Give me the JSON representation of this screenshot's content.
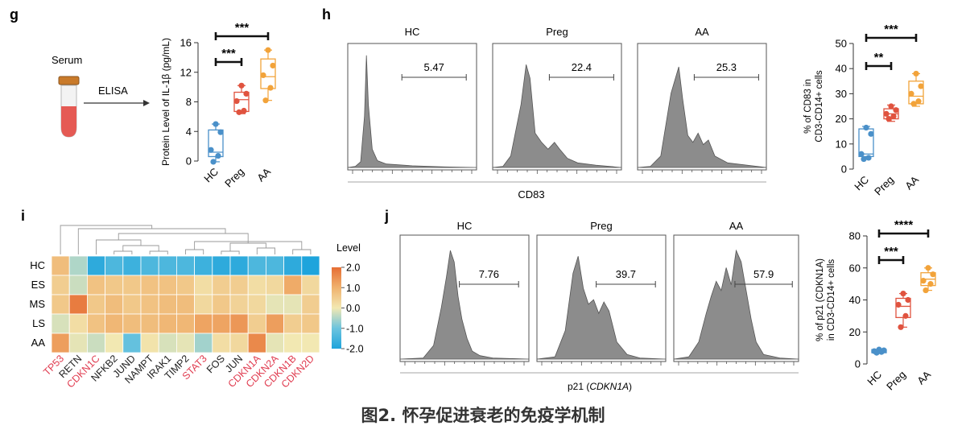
{
  "caption": "图2. 怀孕促进衰老的免疫学机制",
  "colors": {
    "hc": "#4a90c9",
    "preg": "#e0533f",
    "aa": "#f2a33a",
    "red_label": "#e03c50",
    "hist": "#8c8c8c"
  },
  "panel_g": {
    "letter": "g",
    "serum_label": "Serum",
    "elisa_label": "ELISA",
    "chart_data": {
      "type": "box",
      "ylabel": "Protein Level of IL-1β (pg/mL)",
      "categories": [
        "HC",
        "Preg",
        "AA"
      ],
      "ylim": [
        0,
        16
      ],
      "yticks": [
        "0",
        "4",
        "8",
        "12",
        "16"
      ],
      "boxes": [
        {
          "name": "HC",
          "q1": 0.6,
          "median": 1.2,
          "q3": 4.2,
          "min": -0.1,
          "max": 5.0,
          "points": [
            5.0,
            3.9,
            1.5,
            0.7,
            -0.1
          ]
        },
        {
          "name": "Preg",
          "q1": 6.7,
          "median": 8.3,
          "q3": 9.3,
          "min": 6.4,
          "max": 10.2,
          "points": [
            10.2,
            9.1,
            8.1,
            6.8,
            6.6
          ]
        },
        {
          "name": "AA",
          "q1": 9.8,
          "median": 11.4,
          "q3": 13.8,
          "min": 8.2,
          "max": 15.0,
          "points": [
            15.0,
            12.9,
            11.6,
            9.9,
            8.2
          ]
        }
      ],
      "significance": [
        {
          "from": "HC",
          "to": "Preg",
          "label": "***"
        },
        {
          "from": "HC",
          "to": "AA",
          "label": "***"
        }
      ]
    }
  },
  "panel_h": {
    "letter": "h",
    "xlabel": "CD83",
    "chart_data": {
      "type": "histogram",
      "histograms": [
        {
          "title": "HC",
          "gate": "5.47"
        },
        {
          "title": "Preg",
          "gate": "22.4"
        },
        {
          "title": "AA",
          "gate": "25.3"
        }
      ]
    },
    "dot_chart": {
      "type": "box",
      "ylabel_1": "% of CD83 in",
      "ylabel_2": "CD3-CD14+ cells",
      "categories": [
        "HC",
        "Preg",
        "AA"
      ],
      "ylim": [
        0,
        50
      ],
      "yticks": [
        "0",
        "10",
        "20",
        "30",
        "40",
        "50"
      ],
      "boxes": [
        {
          "name": "HC",
          "q1": 5,
          "median": 6,
          "q3": 16,
          "min": 4,
          "max": 17,
          "points": [
            16.5,
            14,
            6,
            4.5,
            4
          ]
        },
        {
          "name": "Preg",
          "q1": 20,
          "median": 22,
          "q3": 24,
          "min": 19,
          "max": 25.5,
          "points": [
            25,
            23.5,
            22,
            21,
            20
          ]
        },
        {
          "name": "AA",
          "q1": 26,
          "median": 29,
          "q3": 35,
          "min": 25,
          "max": 38,
          "points": [
            38,
            33,
            30,
            27,
            26
          ]
        }
      ],
      "significance": [
        {
          "from": "HC",
          "to": "Preg",
          "label": "**"
        },
        {
          "from": "HC",
          "to": "AA",
          "label": "***"
        }
      ]
    }
  },
  "panel_i": {
    "letter": "i",
    "legend_title": "Level",
    "legend_ticks": [
      "2.0",
      "1.0",
      "0.0",
      "-1.0",
      "-2.0"
    ],
    "chart_data": {
      "type": "heatmap",
      "rows": [
        "HC",
        "ES",
        "MS",
        "LS",
        "AA"
      ],
      "columns": [
        "TP53",
        "RETN",
        "CDKN1C",
        "NFKB2",
        "JUND",
        "NAMPT",
        "IRAK1",
        "TIMP2",
        "STAT3",
        "FOS",
        "JUN",
        "CDKN1A",
        "CDKN2A",
        "CDKN1B",
        "CDKN2D"
      ],
      "red_columns": [
        "TP53",
        "CDKN1C",
        "STAT3",
        "CDKN1A",
        "CDKN2A",
        "CDKN1B",
        "CDKN2D"
      ],
      "values": [
        [
          0.8,
          -0.5,
          -1.8,
          -1.4,
          -1.6,
          -1.4,
          -1.4,
          -1.4,
          -1.6,
          -1.8,
          -1.8,
          -1.4,
          -1.4,
          -1.8,
          -2.0
        ],
        [
          0.5,
          -0.3,
          0.7,
          0.6,
          0.6,
          0.7,
          0.7,
          0.6,
          0.2,
          0.5,
          0.5,
          0.2,
          0.3,
          1.1,
          0.3
        ],
        [
          0.6,
          1.8,
          0.6,
          0.8,
          0.6,
          0.7,
          0.8,
          0.8,
          0.3,
          0.6,
          0.4,
          0.3,
          -0.1,
          -0.1,
          0.5
        ],
        [
          -0.2,
          0.2,
          0.7,
          0.9,
          0.8,
          0.8,
          0.9,
          0.9,
          1.2,
          1.2,
          1.4,
          0.5,
          1.3,
          0.5,
          0.6
        ],
        [
          1.3,
          -0.1,
          -0.3,
          0.0,
          -1.1,
          0.1,
          -0.2,
          -0.1,
          -0.6,
          0.2,
          0.3,
          1.6,
          -0.1,
          0.0,
          0.0
        ]
      ],
      "vmin": -2.0,
      "vmax": 2.0
    }
  },
  "panel_j": {
    "letter": "j",
    "xlabel": "p21 (CDKN1A)",
    "chart_data": {
      "type": "histogram",
      "histograms": [
        {
          "title": "HC",
          "gate": "7.76"
        },
        {
          "title": "Preg",
          "gate": "39.7"
        },
        {
          "title": "AA",
          "gate": "57.9"
        }
      ]
    },
    "dot_chart": {
      "type": "box",
      "ylabel_1": "% of p21 (CDKN1A)",
      "ylabel_2": "in CD3-CD14+ cells",
      "categories": [
        "HC",
        "Preg",
        "AA"
      ],
      "ylim": [
        0,
        80
      ],
      "yticks": [
        "0",
        "20",
        "40",
        "60",
        "80"
      ],
      "boxes": [
        {
          "name": "HC",
          "q1": 7,
          "median": 8,
          "q3": 9,
          "min": 7,
          "max": 9,
          "points": [
            9,
            8.5,
            8,
            7.5,
            7
          ]
        },
        {
          "name": "Preg",
          "q1": 29,
          "median": 36,
          "q3": 41,
          "min": 23,
          "max": 44,
          "points": [
            44,
            40,
            37,
            30,
            23
          ]
        },
        {
          "name": "AA",
          "q1": 49,
          "median": 53,
          "q3": 57,
          "min": 46,
          "max": 60,
          "points": [
            60,
            56,
            52,
            50,
            46
          ]
        }
      ],
      "significance": [
        {
          "from": "HC",
          "to": "Preg",
          "label": "***"
        },
        {
          "from": "HC",
          "to": "AA",
          "label": "****"
        }
      ]
    }
  }
}
